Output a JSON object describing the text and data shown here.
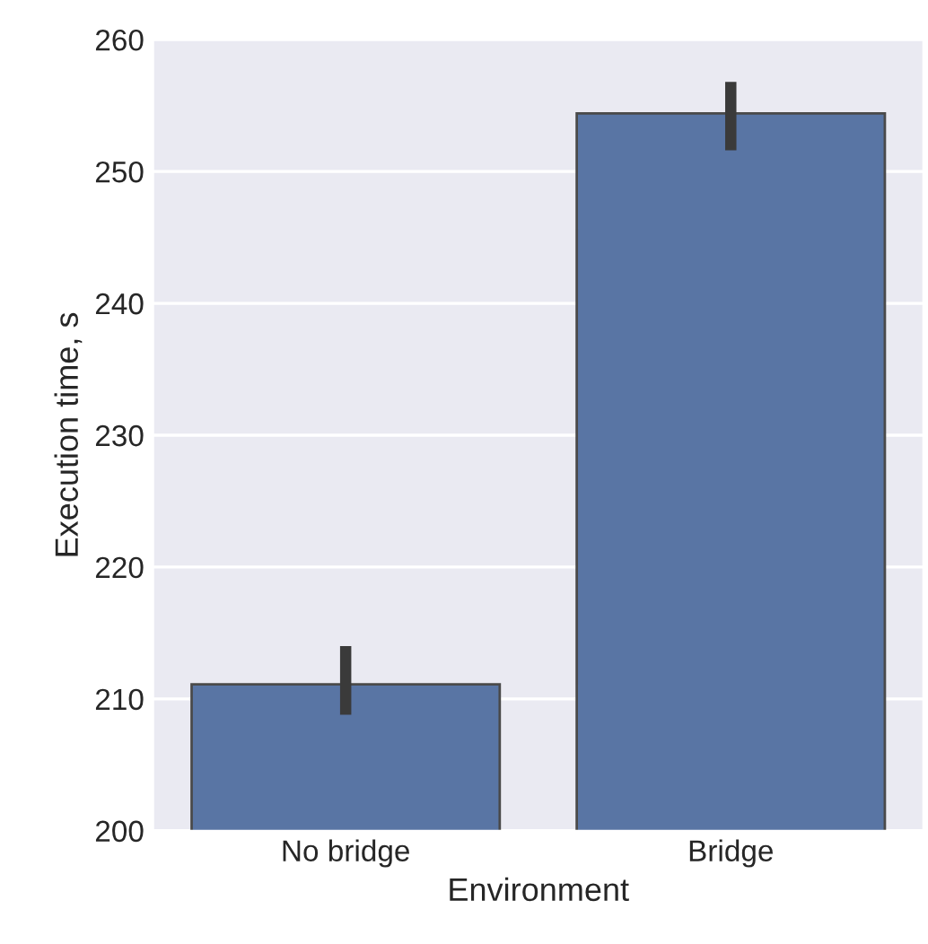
{
  "chart_data": {
    "type": "bar",
    "xlabel": "Environment",
    "ylabel": "Execution time, s",
    "categories": [
      "No bridge",
      "Bridge"
    ],
    "values": [
      211.1,
      254.4
    ],
    "errors": [
      [
        208.8,
        214.0
      ],
      [
        251.6,
        256.8
      ]
    ],
    "color": "#5975a4",
    "ylim": [
      200,
      260
    ],
    "yticks": [
      200,
      210,
      220,
      230,
      240,
      250,
      260
    ],
    "grid": "y"
  }
}
